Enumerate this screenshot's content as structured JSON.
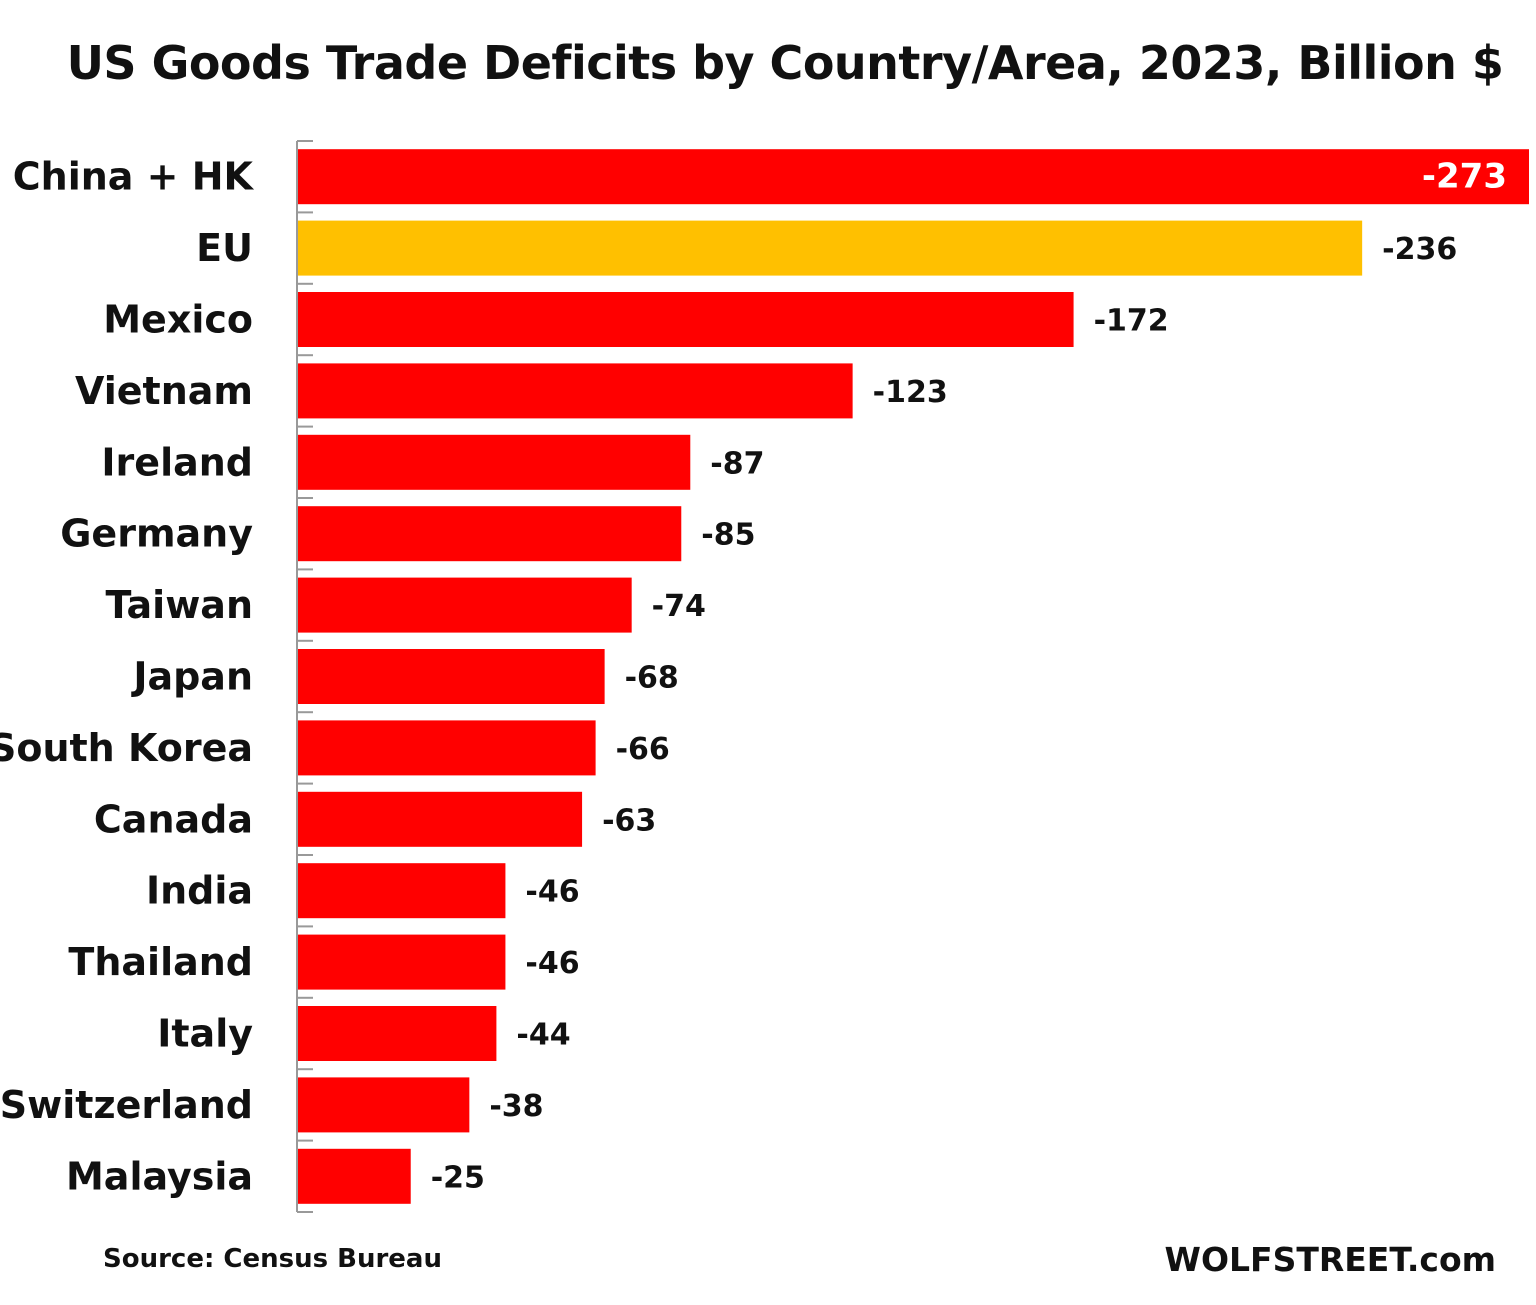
{
  "chart_data": {
    "type": "bar",
    "orientation": "horizontal",
    "title": "US Goods Trade Deficits by Country/Area, 2023, Billion $",
    "categories": [
      "China + HK",
      "EU",
      "Mexico",
      "Vietnam",
      "Ireland",
      "Germany",
      "Taiwan",
      "Japan",
      "South Korea",
      "Canada",
      "India",
      "Thailand",
      "Italy",
      "Switzerland",
      "Malaysia"
    ],
    "values": [
      -273,
      -236,
      -172,
      -123,
      -87,
      -85,
      -74,
      -68,
      -66,
      -63,
      -46,
      -46,
      -44,
      -38,
      -25
    ],
    "data_labels": [
      "-273",
      "-236",
      "-172",
      "-123",
      "-87",
      "-85",
      "-74",
      "-68",
      "-66",
      "-63",
      "-46",
      "-46",
      "-44",
      "-38",
      "-25"
    ],
    "colors": {
      "default": "#ff0000",
      "EU": "#ffc000",
      "inside_label": "#ffffff"
    },
    "xlim": [
      0,
      -273
    ],
    "grid": false,
    "legend": "none"
  },
  "source": "Source: Census Bureau",
  "brand": "WOLFSTREET.com"
}
